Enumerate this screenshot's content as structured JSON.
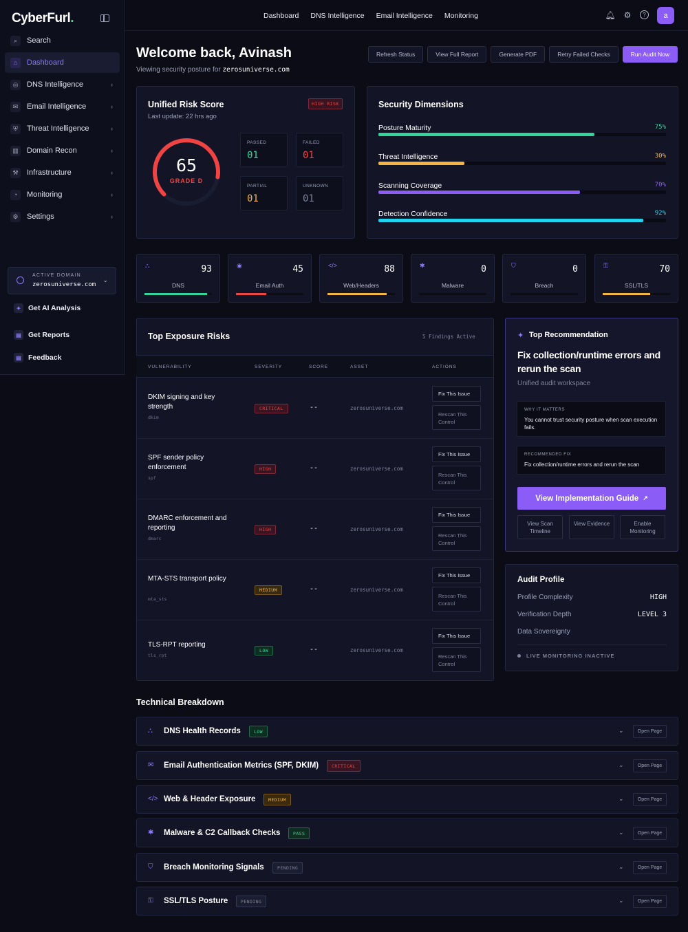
{
  "app": {
    "logo": "CyberFurl",
    "logo_dot": "."
  },
  "sidebar": {
    "items": [
      {
        "label": "Search",
        "icon": "search-icon",
        "glyph": "⌕"
      },
      {
        "label": "Dashboard",
        "icon": "home-icon",
        "glyph": "⌂"
      },
      {
        "label": "DNS Intelligence",
        "icon": "radio-icon",
        "glyph": "◎"
      },
      {
        "label": "Email Intelligence",
        "icon": "mail-icon",
        "glyph": "✉"
      },
      {
        "label": "Threat Intelligence",
        "icon": "shield-icon",
        "glyph": "⛨"
      },
      {
        "label": "Domain Recon",
        "icon": "building-icon",
        "glyph": "▥"
      },
      {
        "label": "Infrastructure",
        "icon": "wrench-icon",
        "glyph": "⚒"
      },
      {
        "label": "Monitoring",
        "icon": "gauge-icon",
        "glyph": "◔"
      },
      {
        "label": "Settings",
        "icon": "gear-icon",
        "glyph": "⚙"
      }
    ],
    "active_domain_label": "ACTIVE DOMAIN",
    "active_domain_value": "zerosuniverse.com",
    "links": [
      {
        "label": "Get AI Analysis",
        "icon": "sparkle-icon",
        "glyph": "✦"
      },
      {
        "label": "Get Reports",
        "icon": "file-icon",
        "glyph": "▤"
      },
      {
        "label": "Feedback",
        "icon": "note-icon",
        "glyph": "▤"
      }
    ]
  },
  "topnav": [
    "Dashboard",
    "DNS Intelligence",
    "Email Intelligence",
    "Monitoring"
  ],
  "user": {
    "avatar_letter": "a"
  },
  "header": {
    "welcome": "Welcome back, Avinash",
    "subtitle_prefix": "Viewing security posture for",
    "domain": "zerosuniverse.com",
    "buttons": [
      "Refresh Status",
      "View Full Report",
      "Generate PDF",
      "Retry Failed Checks",
      "Run Audit Now"
    ]
  },
  "risk_score": {
    "title": "Unified Risk Score",
    "last_update": "Last update: 22 hrs ago",
    "badge": "HIGH RISK",
    "score": "65",
    "score_fraction": 0.65,
    "grade": "GRADE D",
    "stats": [
      {
        "label": "PASSED",
        "value": "01",
        "color": "#34d399"
      },
      {
        "label": "FAILED",
        "value": "01",
        "color": "#ef4444"
      },
      {
        "label": "PARTIAL",
        "value": "01",
        "color": "#f5b544"
      },
      {
        "label": "UNKNOWN",
        "value": "01",
        "color": "#7f8399"
      }
    ]
  },
  "dimensions": {
    "title": "Security Dimensions",
    "items": [
      {
        "name": "Posture Maturity",
        "pct": "75%",
        "value": 0.75,
        "color": "#34d399"
      },
      {
        "name": "Threat Intelligence",
        "pct": "30%",
        "value": 0.3,
        "color": "#f5b544"
      },
      {
        "name": "Scanning Coverage",
        "pct": "70%",
        "value": 0.7,
        "color": "#8b5cf6"
      },
      {
        "name": "Detection Confidence",
        "pct": "92%",
        "value": 0.92,
        "color": "#22d3ee"
      }
    ]
  },
  "mini_cards": [
    {
      "label": "DNS",
      "value": "93",
      "fill": 0.93,
      "color": "#34d399",
      "icon": "network-icon",
      "glyph": "⛬"
    },
    {
      "label": "Email Auth",
      "value": "45",
      "fill": 0.45,
      "color": "#ef4444",
      "icon": "check-circle-icon",
      "glyph": "◉"
    },
    {
      "label": "Web/Headers",
      "value": "88",
      "fill": 0.88,
      "color": "#f5b544",
      "icon": "code-icon",
      "glyph": "</>"
    },
    {
      "label": "Malware",
      "value": "0",
      "fill": 0,
      "color": "#8b5cf6",
      "icon": "bug-icon",
      "glyph": "✱"
    },
    {
      "label": "Breach",
      "value": "0",
      "fill": 0,
      "color": "#8b5cf6",
      "icon": "shield-icon",
      "glyph": "⛉"
    },
    {
      "label": "SSL/TLS",
      "value": "70",
      "fill": 0.7,
      "color": "#f5b544",
      "icon": "lock-icon",
      "glyph": "⚿"
    }
  ],
  "exposure": {
    "title": "Top Exposure Risks",
    "findings": "5 Findings Active",
    "headers": [
      "VULNERABILITY",
      "SEVERITY",
      "SCORE",
      "ASSET",
      "ACTIONS"
    ],
    "fix_label": "Fix This Issue",
    "rescan_label": "Rescan This Control",
    "rows": [
      {
        "name": "DKIM signing and key strength",
        "key": "dkim",
        "severity": "CRITICAL",
        "sev_class": "t-crit",
        "score": "--",
        "asset": "zerosuniverse.com"
      },
      {
        "name": "SPF sender policy enforcement",
        "key": "spf",
        "severity": "HIGH",
        "sev_class": "t-high",
        "score": "--",
        "asset": "zerosuniverse.com"
      },
      {
        "name": "DMARC enforcement and reporting",
        "key": "dmarc",
        "severity": "HIGH",
        "sev_class": "t-high",
        "score": "--",
        "asset": "zerosuniverse.com"
      },
      {
        "name": "MTA-STS transport policy",
        "key": "mta_sts",
        "severity": "MEDIUM",
        "sev_class": "t-med",
        "score": "--",
        "asset": "zerosuniverse.com"
      },
      {
        "name": "TLS-RPT reporting",
        "key": "tls_rpt",
        "severity": "LOW",
        "sev_class": "t-low",
        "score": "--",
        "asset": "zerosuniverse.com"
      }
    ]
  },
  "recommendation": {
    "label": "Top Recommendation",
    "headline": "Fix collection/runtime errors and rerun the scan",
    "sub": "Unified audit workspace",
    "why_label": "WHY IT MATTERS",
    "why_text": "You cannot trust security posture when scan execution fails.",
    "fix_label": "RECOMMENDED FIX",
    "fix_text": "Fix collection/runtime errors and rerun the scan",
    "cta": "View Implementation Guide",
    "buttons": [
      "View Scan Timeline",
      "View Evidence",
      "Enable Monitoring"
    ]
  },
  "audit_profile": {
    "title": "Audit Profile",
    "rows": [
      {
        "label": "Profile Complexity",
        "value": "HIGH"
      },
      {
        "label": "Verification Depth",
        "value": "LEVEL 3"
      },
      {
        "label": "Data Sovereignty",
        "value": ""
      }
    ],
    "status": "LIVE MONITORING INACTIVE"
  },
  "breakdown": {
    "title": "Technical Breakdown",
    "open_label": "Open Page",
    "items": [
      {
        "name": "DNS Health Records",
        "tag": "LOW",
        "tag_class": "t-low",
        "icon": "network-icon",
        "glyph": "⛬"
      },
      {
        "name": "Email Authentication Metrics (SPF, DKIM)",
        "tag": "CRITICAL",
        "tag_class": "t-crit",
        "icon": "mail-icon",
        "glyph": "✉"
      },
      {
        "name": "Web & Header Exposure",
        "tag": "MEDIUM",
        "tag_class": "t-med",
        "icon": "code-icon",
        "glyph": "</>"
      },
      {
        "name": "Malware & C2 Callback Checks",
        "tag": "PASS",
        "tag_class": "t-pass",
        "icon": "bug-icon",
        "glyph": "✱"
      },
      {
        "name": "Breach Monitoring Signals",
        "tag": "PENDING",
        "tag_class": "t-pend",
        "icon": "shield-icon",
        "glyph": "⛉"
      },
      {
        "name": "SSL/TLS Posture",
        "tag": "PENDING",
        "tag_class": "t-pend",
        "icon": "lock-icon",
        "glyph": "⚿"
      }
    ]
  }
}
